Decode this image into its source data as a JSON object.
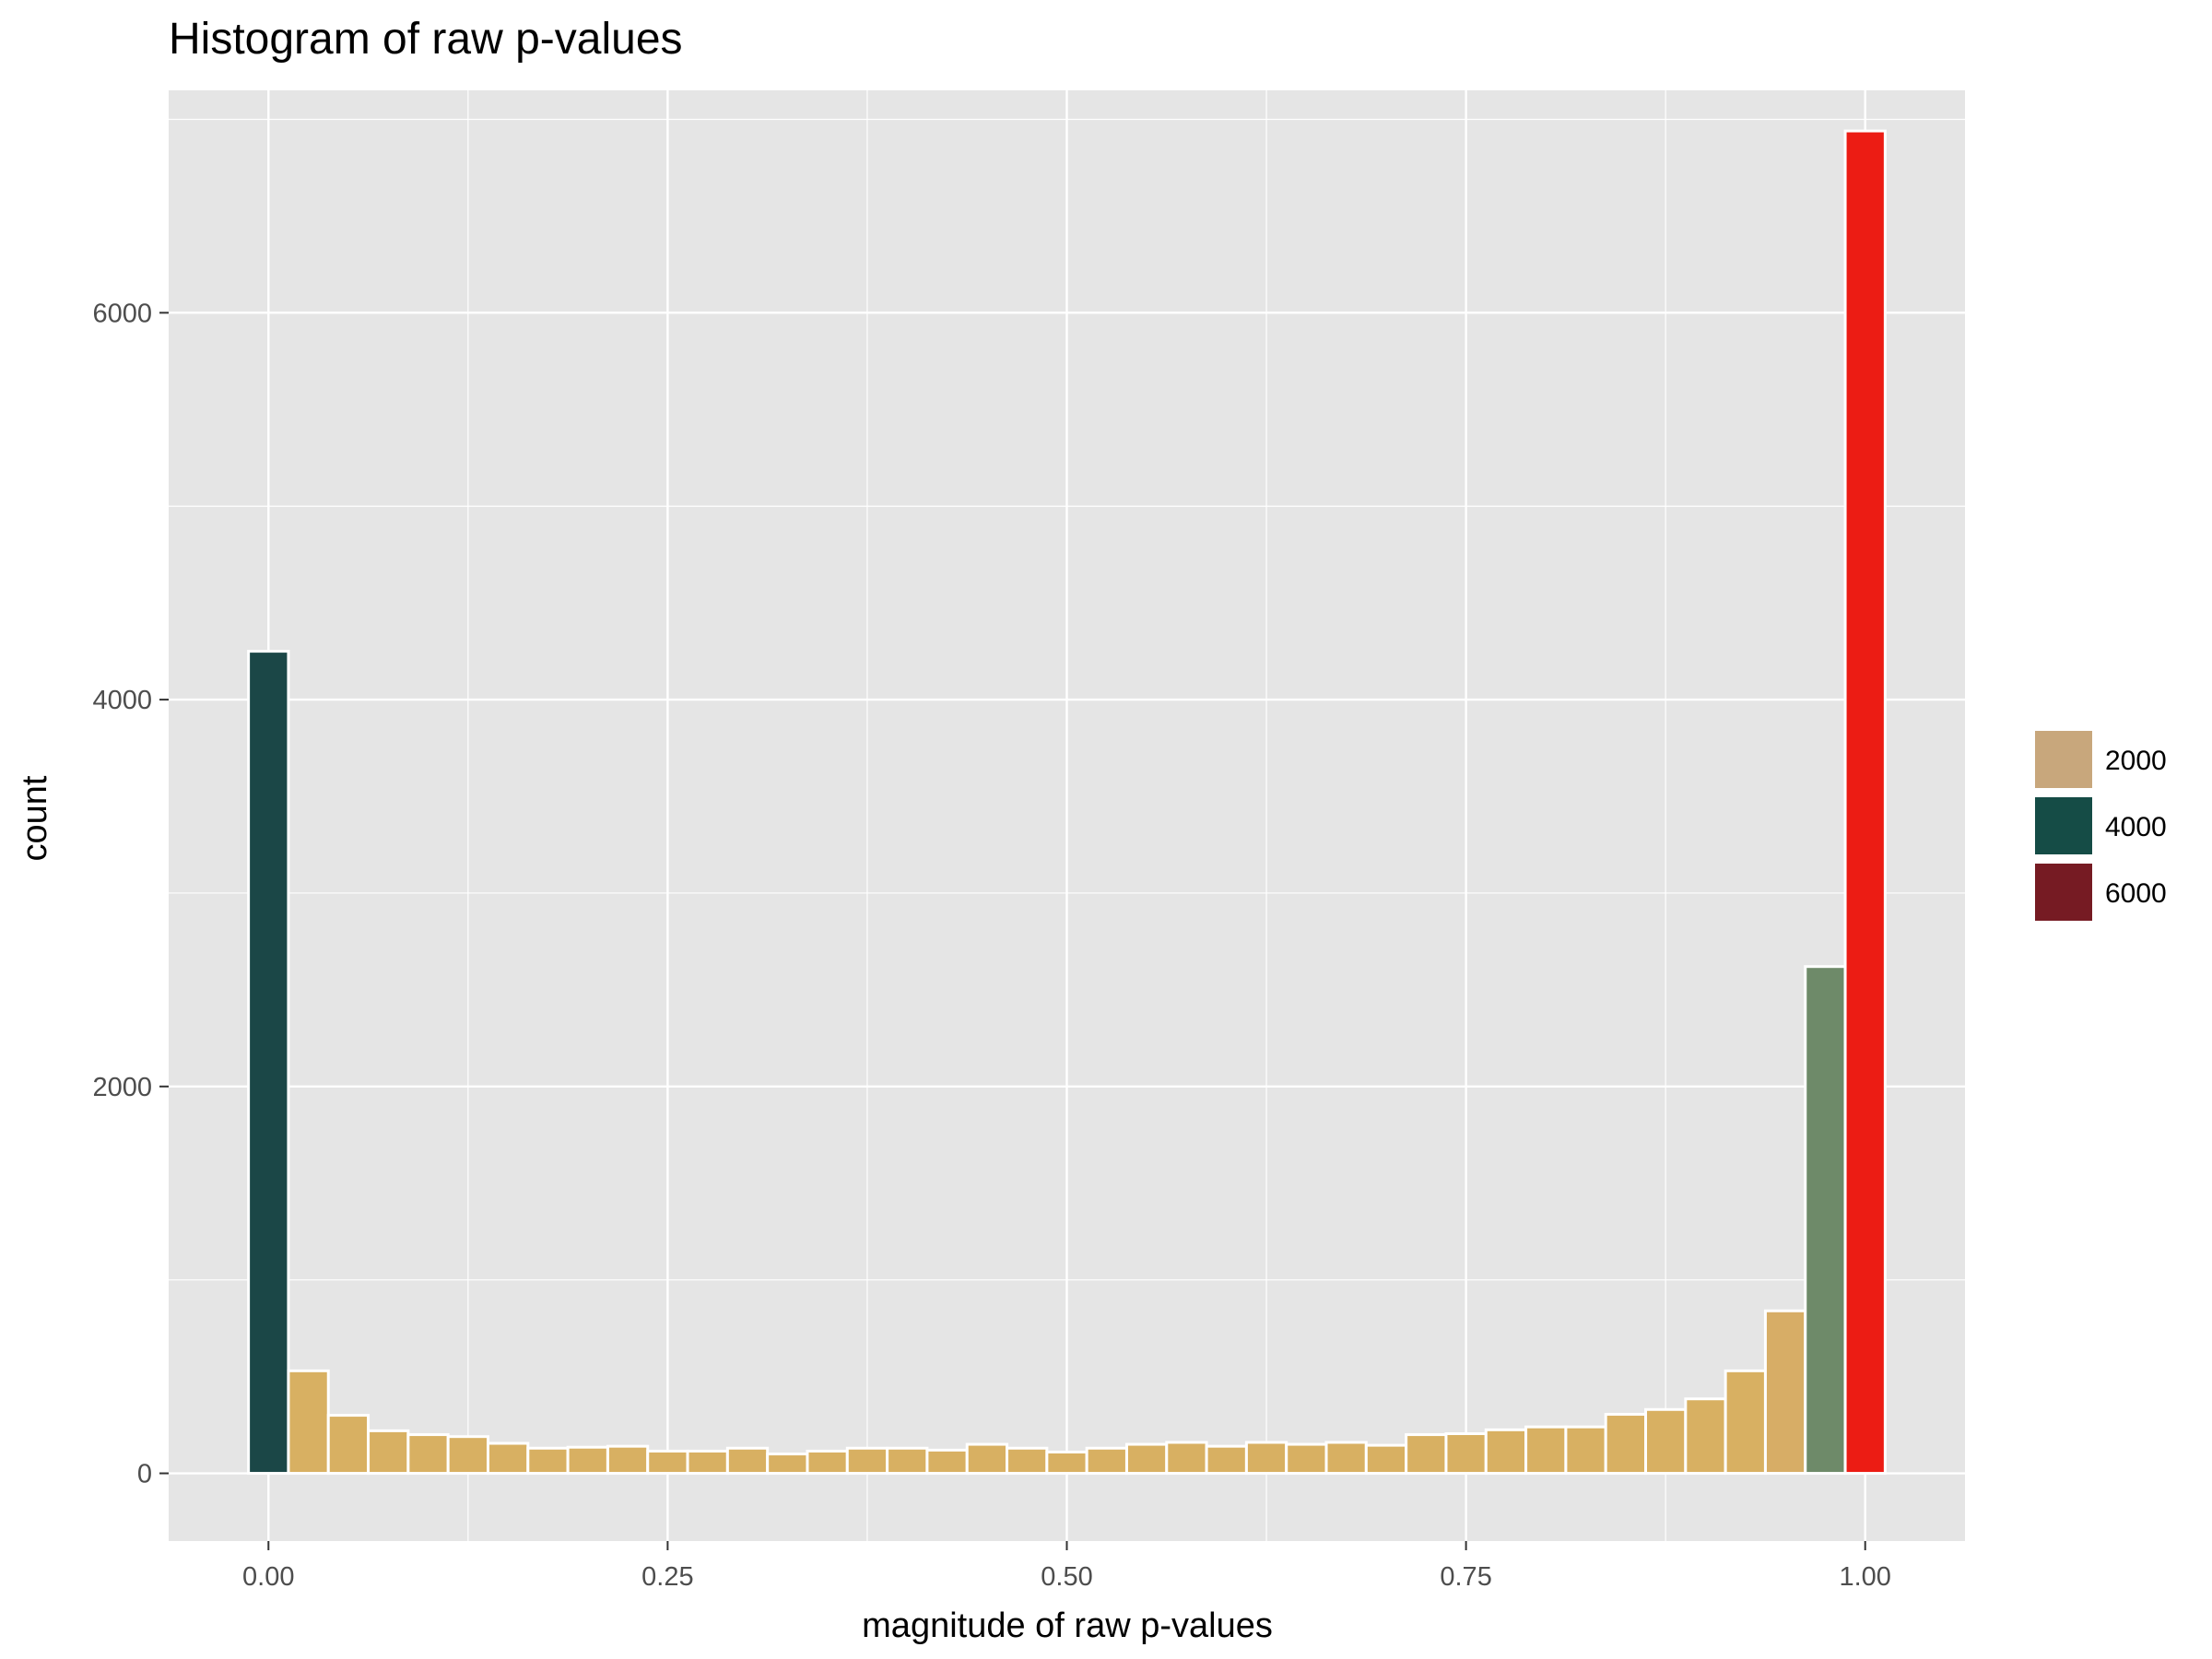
{
  "chart_data": {
    "type": "bar",
    "title": "Histogram of raw p-values",
    "xlabel": "magnitude of raw p-values",
    "ylabel": "count",
    "xlim": [
      -0.0625,
      1.0625
    ],
    "ylim": [
      -350,
      7150
    ],
    "xticks": [
      0.0,
      0.25,
      0.5,
      0.75,
      1.0
    ],
    "xtick_labels": [
      "0.00",
      "0.25",
      "0.50",
      "0.75",
      "1.00"
    ],
    "yticks": [
      0,
      2000,
      4000,
      6000
    ],
    "ytick_labels": [
      "0",
      "2000",
      "4000",
      "6000"
    ],
    "bin_width": 0.025,
    "bin_centers": [
      0.0,
      0.025,
      0.05,
      0.075,
      0.1,
      0.125,
      0.15,
      0.175,
      0.2,
      0.225,
      0.25,
      0.275,
      0.3,
      0.325,
      0.35,
      0.375,
      0.4,
      0.425,
      0.45,
      0.475,
      0.5,
      0.525,
      0.55,
      0.575,
      0.6,
      0.625,
      0.65,
      0.675,
      0.7,
      0.725,
      0.75,
      0.775,
      0.8,
      0.825,
      0.85,
      0.875,
      0.9,
      0.925,
      0.95,
      0.975,
      1.0
    ],
    "values": [
      4250,
      530,
      300,
      220,
      200,
      190,
      155,
      130,
      135,
      140,
      115,
      115,
      130,
      100,
      115,
      130,
      130,
      120,
      150,
      130,
      110,
      130,
      150,
      160,
      140,
      160,
      150,
      160,
      145,
      200,
      205,
      225,
      240,
      240,
      305,
      330,
      385,
      530,
      840,
      2620,
      6940
    ],
    "bar_colors": [
      "#1b4747",
      "#d8b062",
      "#d8b062",
      "#d8b062",
      "#d8b062",
      "#d8b062",
      "#d8b062",
      "#d8b062",
      "#d8b062",
      "#d8b062",
      "#d8b062",
      "#d8b062",
      "#d8b062",
      "#d8b062",
      "#d8b062",
      "#d8b062",
      "#d8b062",
      "#d8b062",
      "#d8b062",
      "#d8b062",
      "#d8b062",
      "#d8b062",
      "#d8b062",
      "#d8b062",
      "#d8b062",
      "#d8b062",
      "#d8b062",
      "#d8b062",
      "#d8b062",
      "#d8b062",
      "#d8b062",
      "#d8b062",
      "#d8b062",
      "#d8b062",
      "#d8b062",
      "#d8b062",
      "#d8b062",
      "#d8b062",
      "#d7ad66",
      "#6e8a69",
      "#ec1c14"
    ],
    "grid": true,
    "legend": {
      "position": "right",
      "entries": [
        {
          "label": "2000",
          "color": "#c8a77c"
        },
        {
          "label": "4000",
          "color": "#154c46"
        },
        {
          "label": "6000",
          "color": "#761b23"
        }
      ]
    },
    "colors": {
      "panel_background": "#e5e5e5",
      "gridline": "#ffffff",
      "bar_outline": "#ffffff"
    }
  }
}
